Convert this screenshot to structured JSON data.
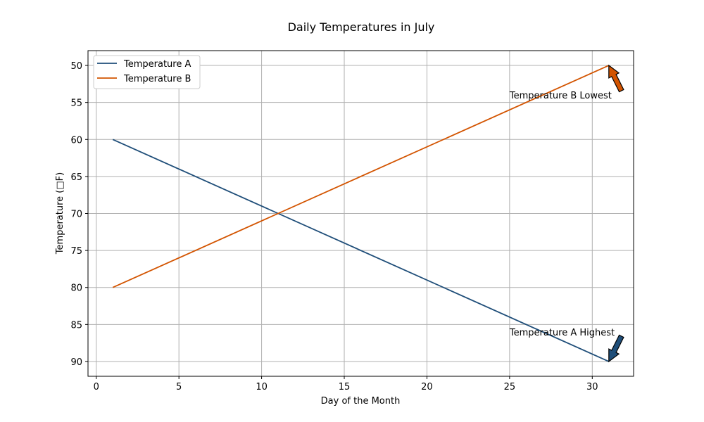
{
  "chart_data": {
    "type": "line",
    "title": "Daily Temperatures in July",
    "xlabel": "Day of the Month",
    "ylabel": "Temperature (□F)",
    "xlim": [
      -0.5,
      32.5
    ],
    "ylim": [
      92,
      48
    ],
    "y_inverted": true,
    "x_ticks": [
      0,
      5,
      10,
      15,
      20,
      25,
      30
    ],
    "y_ticks": [
      50,
      55,
      60,
      65,
      70,
      75,
      80,
      85,
      90
    ],
    "grid": true,
    "legend_position": "upper left",
    "x": [
      1,
      31
    ],
    "series": [
      {
        "name": "Temperature A",
        "color": "#1f4e79",
        "values": [
          60,
          90
        ]
      },
      {
        "name": "Temperature B",
        "color": "#d35400",
        "values": [
          80,
          50
        ]
      }
    ],
    "annotations": [
      {
        "text": "Temperature A Highest",
        "point": [
          31,
          90
        ],
        "text_pos": [
          25,
          86
        ],
        "color": "#1f4e79"
      },
      {
        "text": "Temperature B Lowest",
        "point": [
          31,
          50
        ],
        "text_pos": [
          25,
          54
        ],
        "color": "#d35400"
      }
    ]
  }
}
